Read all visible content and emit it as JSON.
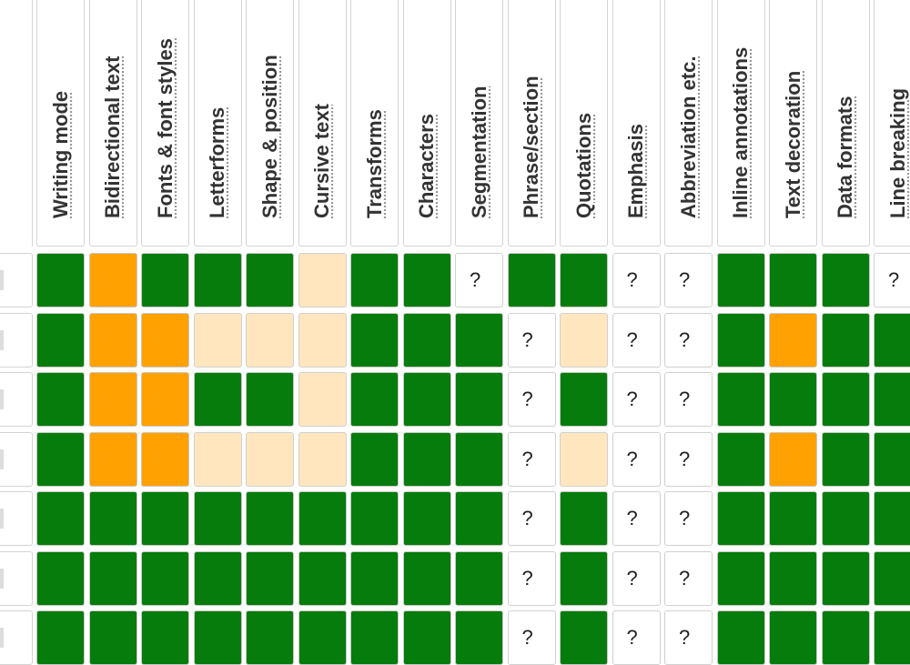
{
  "colors": {
    "complete": "#057c0b",
    "needs_work": "#ffa100",
    "partial": "#ffe6bf",
    "unknown": "#ffffff"
  },
  "columns": [
    "Writing mode",
    "Bidirectional text",
    "Fonts & font styles",
    "Letterforms",
    "Shape & position",
    "Cursive text",
    "Transforms",
    "Characters",
    "Segmentation",
    "Phrase/section",
    "Quotations",
    "Emphasis",
    "Abbreviation etc.",
    "Inline annotations",
    "Text decoration",
    "Data formats",
    "Line breaking"
  ],
  "rows": [
    [
      "g",
      "o",
      "g",
      "g",
      "g",
      "p",
      "g",
      "g",
      "q",
      "g",
      "g",
      "q",
      "q",
      "g",
      "g",
      "g",
      "q"
    ],
    [
      "g",
      "o",
      "o",
      "p",
      "p",
      "p",
      "g",
      "g",
      "g",
      "q",
      "p",
      "q",
      "q",
      "g",
      "o",
      "g",
      "g"
    ],
    [
      "g",
      "o",
      "o",
      "g",
      "g",
      "p",
      "g",
      "g",
      "g",
      "q",
      "g",
      "q",
      "q",
      "g",
      "g",
      "g",
      "g"
    ],
    [
      "g",
      "o",
      "o",
      "p",
      "p",
      "p",
      "g",
      "g",
      "g",
      "q",
      "p",
      "q",
      "q",
      "g",
      "o",
      "g",
      "g"
    ],
    [
      "g",
      "g",
      "g",
      "g",
      "g",
      "g",
      "g",
      "g",
      "g",
      "q",
      "g",
      "q",
      "q",
      "g",
      "g",
      "g",
      "g"
    ],
    [
      "g",
      "g",
      "g",
      "g",
      "g",
      "g",
      "g",
      "g",
      "g",
      "q",
      "g",
      "q",
      "q",
      "g",
      "g",
      "g",
      "g"
    ],
    [
      "g",
      "g",
      "g",
      "g",
      "g",
      "g",
      "g",
      "g",
      "g",
      "q",
      "g",
      "q",
      "q",
      "g",
      "g",
      "g",
      "g"
    ]
  ],
  "unknown_mark": "?",
  "needs_work_mark": "!"
}
